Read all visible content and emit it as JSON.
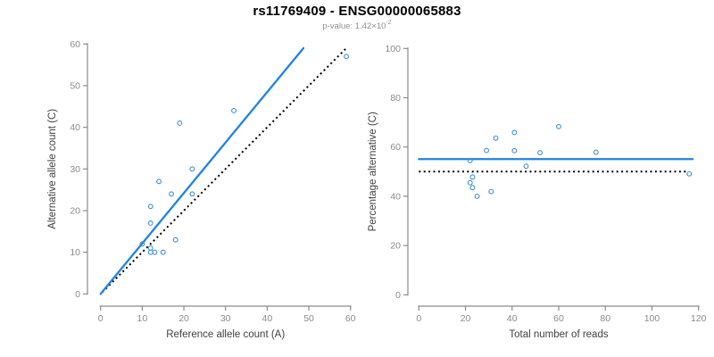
{
  "header": {
    "title": "rs11769409 - ENSG00000065883",
    "subtitle_prefix": "p-value: 1.42×10",
    "subtitle_exponent": "-2"
  },
  "colors": {
    "fit_line_blue": "#1E82E6",
    "point_blue": "#3E8FD6",
    "identity_line_black": "#000000",
    "axis_gray": "#8A8A8A",
    "tick_label_gray": "#8A8A8A",
    "axis_label_dark": "#404040",
    "title_black": "#000000",
    "subtitle_gray": "#909090",
    "background": "#FFFFFF"
  },
  "chart_data": [
    {
      "type": "scatter",
      "name": "allele-count-scatter",
      "xlabel": "Reference allele count (A)",
      "ylabel": "Alternative allele count (C)",
      "xlim": [
        0,
        60
      ],
      "ylim": [
        0,
        60
      ],
      "xticks": [
        0,
        10,
        20,
        30,
        40,
        50,
        60
      ],
      "yticks": [
        0,
        10,
        20,
        30,
        40,
        50,
        60
      ],
      "grid": false,
      "legend": null,
      "points_x": [
        10,
        12,
        12,
        13,
        15,
        18,
        12,
        12,
        14,
        17,
        22,
        22,
        19,
        32,
        59
      ],
      "points_y": [
        12,
        11,
        10,
        10,
        10,
        13,
        17,
        21,
        27,
        24,
        24,
        30,
        41,
        44,
        57
      ],
      "fit_line": {
        "x1": 0,
        "y1": 0,
        "x2": 48.7,
        "y2": 59,
        "style": "solid"
      },
      "identity_line": {
        "x1": 0.4,
        "y1": 0.4,
        "x2": 58.8,
        "y2": 58.8,
        "style": "dotted"
      }
    },
    {
      "type": "scatter",
      "name": "percentage-scatter",
      "xlabel": "Total number of reads",
      "ylabel": "Percentage alternative (C)",
      "xlim": [
        0,
        120
      ],
      "ylim": [
        0,
        100
      ],
      "xticks": [
        0,
        20,
        40,
        60,
        80,
        100,
        120
      ],
      "yticks": [
        0,
        20,
        40,
        60,
        80,
        100
      ],
      "grid": false,
      "legend": null,
      "points_x": [
        22,
        23,
        22,
        23,
        25,
        31,
        29,
        33,
        41,
        41,
        46,
        52,
        60,
        76,
        116
      ],
      "points_y": [
        54.5,
        47.8,
        45.5,
        43.5,
        40.0,
        41.9,
        58.6,
        63.6,
        65.9,
        58.5,
        52.2,
        57.7,
        68.3,
        57.9,
        49.1
      ],
      "fit_line": {
        "x1": 0,
        "y1": 55.1,
        "x2": 117.5,
        "y2": 55.1,
        "style": "solid"
      },
      "identity_line": {
        "x1": 0,
        "y1": 50,
        "x2": 114.5,
        "y2": 50,
        "style": "dotted"
      }
    }
  ]
}
